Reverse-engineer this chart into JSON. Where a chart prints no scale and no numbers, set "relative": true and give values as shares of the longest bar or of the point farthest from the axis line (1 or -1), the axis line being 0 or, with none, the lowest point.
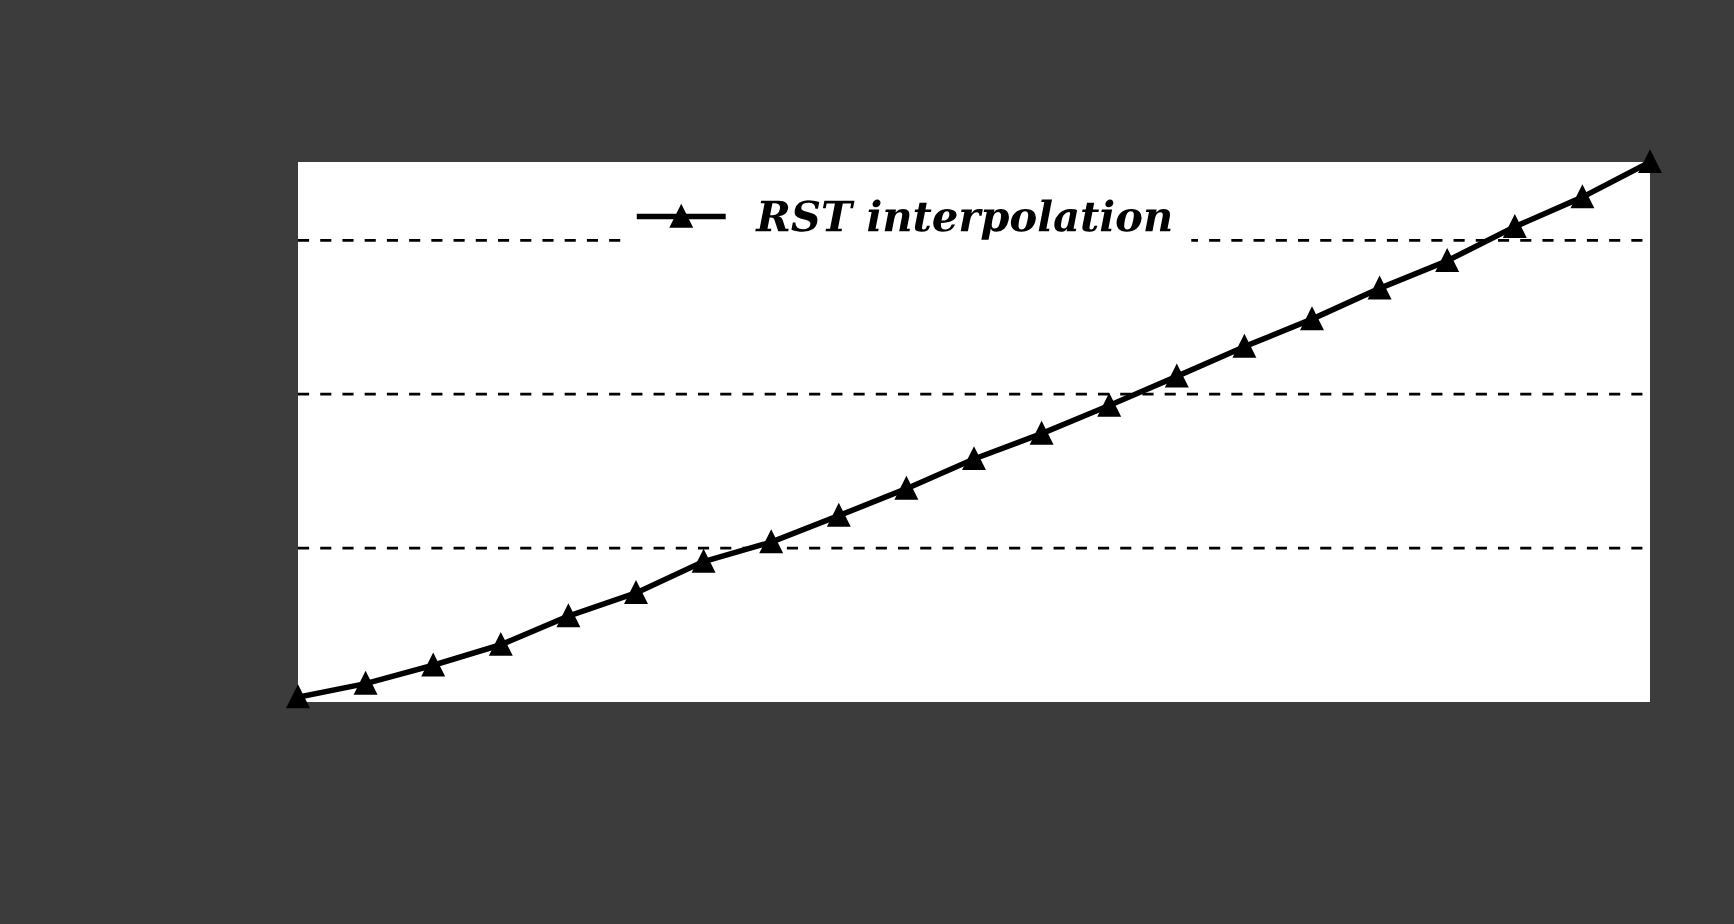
{
  "chart_data": {
    "type": "line",
    "relative": true,
    "grid": "y",
    "legend": "top",
    "marker": "triangle",
    "line_style": "solid",
    "tick_labels": false,
    "categories": [
      null,
      null,
      null,
      null,
      null,
      null,
      null,
      null,
      null,
      null,
      null,
      null,
      null,
      null,
      null,
      null,
      null,
      null,
      null,
      null,
      null
    ],
    "series": [
      {
        "name": "RST interpolation",
        "color": "#000000",
        "values": [
          0.009,
          0.034,
          0.068,
          0.106,
          0.159,
          0.202,
          0.26,
          0.296,
          0.345,
          0.395,
          0.45,
          0.497,
          0.549,
          0.603,
          0.658,
          0.709,
          0.766,
          0.817,
          0.88,
          0.935,
          1.0
        ]
      }
    ]
  }
}
